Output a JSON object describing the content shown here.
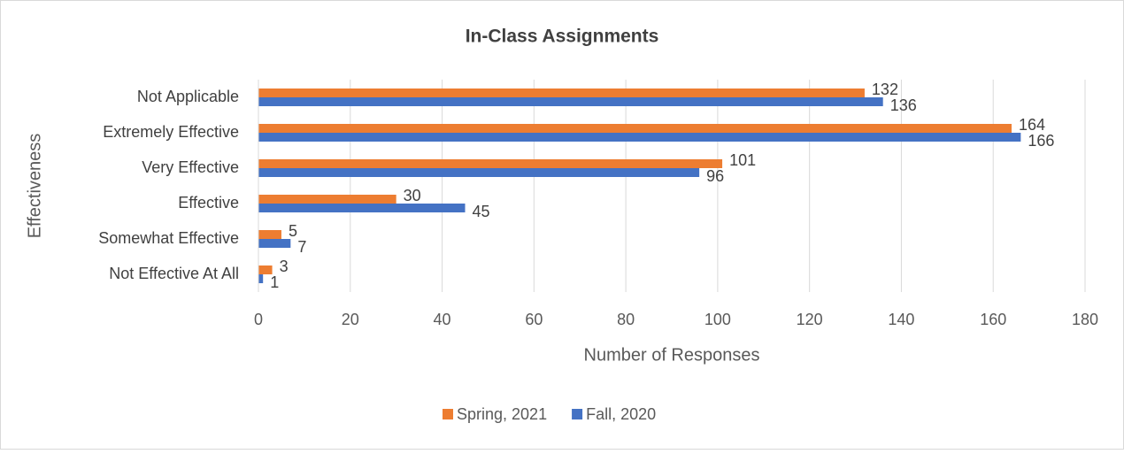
{
  "chart_data": {
    "type": "bar",
    "orientation": "horizontal",
    "title": "In-Class Assignments",
    "x_label": "Number of Responses",
    "y_label": "Effectiveness",
    "categories": [
      "Not Applicable",
      "Extremely Effective",
      "Very Effective",
      "Effective",
      "Somewhat Effective",
      "Not Effective At All"
    ],
    "series": [
      {
        "name": "Spring, 2021",
        "color": "#ed7d31",
        "values": [
          132,
          164,
          101,
          30,
          5,
          3
        ]
      },
      {
        "name": "Fall, 2020",
        "color": "#4472c4",
        "values": [
          136,
          166,
          96,
          45,
          7,
          1
        ]
      }
    ],
    "xlim": [
      0,
      180
    ],
    "xticks": [
      0,
      20,
      40,
      60,
      80,
      100,
      120,
      140,
      160,
      180
    ],
    "grid": true,
    "legend": "bottom"
  }
}
